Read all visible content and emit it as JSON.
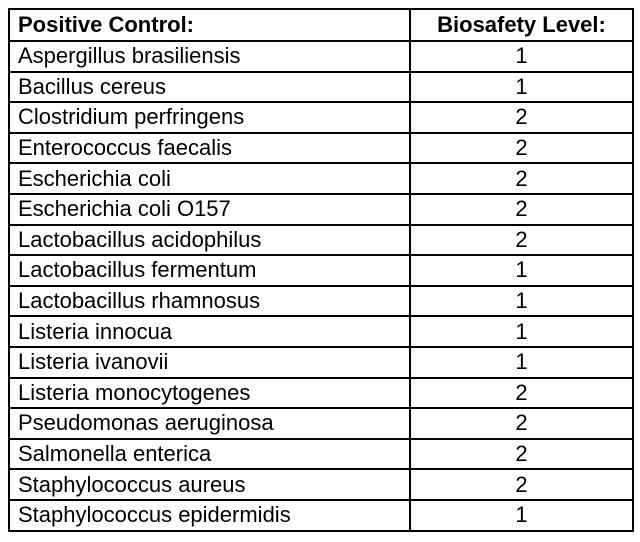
{
  "table": {
    "headers": {
      "control": "Positive Control:",
      "level": "Biosafety Level:"
    },
    "rows": [
      {
        "organism": "Aspergillus brasiliensis",
        "level": "1"
      },
      {
        "organism": "Bacillus cereus",
        "level": "1"
      },
      {
        "organism": "Clostridium perfringens",
        "level": "2"
      },
      {
        "organism": "Enterococcus faecalis",
        "level": "2"
      },
      {
        "organism": "Escherichia coli",
        "level": "2"
      },
      {
        "organism": "Escherichia coli O157",
        "level": "2"
      },
      {
        "organism": "Lactobacillus acidophilus",
        "level": "2"
      },
      {
        "organism": "Lactobacillus fermentum",
        "level": "1"
      },
      {
        "organism": "Lactobacillus rhamnosus",
        "level": "1"
      },
      {
        "organism": "Listeria innocua",
        "level": "1"
      },
      {
        "organism": "Listeria ivanovii",
        "level": "1"
      },
      {
        "organism": "Listeria monocytogenes",
        "level": "2"
      },
      {
        "organism": "Pseudomonas aeruginosa",
        "level": "2"
      },
      {
        "organism": "Salmonella enterica",
        "level": "2"
      },
      {
        "organism": "Staphylococcus aureus",
        "level": "2"
      },
      {
        "organism": "Staphylococcus epidermidis",
        "level": "1"
      }
    ]
  }
}
